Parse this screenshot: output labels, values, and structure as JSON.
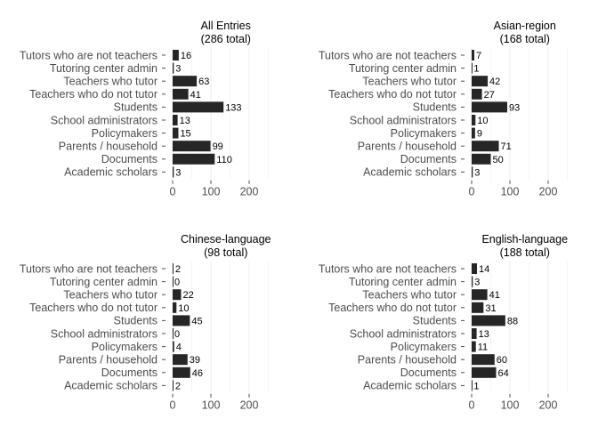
{
  "chart_data": [
    {
      "type": "bar",
      "orientation": "horizontal",
      "title": "All Entries",
      "subtitle": "(286 total)",
      "categories": [
        "Tutors who are not teachers",
        "Tutoring center admin",
        "Teachers who tutor",
        "Teachers who do not tutor",
        "Students",
        "School administrators",
        "Policymakers",
        "Parents / household",
        "Documents",
        "Academic scholars"
      ],
      "values": [
        16,
        3,
        63,
        41,
        133,
        13,
        15,
        99,
        110,
        3
      ],
      "xlim": [
        0,
        250
      ],
      "xticks": [
        0,
        100,
        200
      ],
      "grid": true,
      "bar_color": "#262626"
    },
    {
      "type": "bar",
      "orientation": "horizontal",
      "title": "Asian-region",
      "subtitle": "(168 total)",
      "categories": [
        "Tutors who are not teachers",
        "Tutoring center admin",
        "Teachers who tutor",
        "Teachers who do not tutor",
        "Students",
        "School administrators",
        "Policymakers",
        "Parents / household",
        "Documents",
        "Academic scholars"
      ],
      "values": [
        7,
        1,
        42,
        27,
        93,
        10,
        9,
        71,
        50,
        3
      ],
      "xlim": [
        0,
        250
      ],
      "xticks": [
        0,
        100,
        200
      ],
      "grid": true,
      "bar_color": "#262626"
    },
    {
      "type": "bar",
      "orientation": "horizontal",
      "title": "Chinese-language",
      "subtitle": "(98 total)",
      "categories": [
        "Tutors who are not teachers",
        "Tutoring center admin",
        "Teachers who tutor",
        "Teachers who do not tutor",
        "Students",
        "School administrators",
        "Policymakers",
        "Parents / household",
        "Documents",
        "Academic scholars"
      ],
      "values": [
        2,
        0,
        22,
        10,
        45,
        0,
        4,
        39,
        46,
        2
      ],
      "xlim": [
        0,
        250
      ],
      "xticks": [
        0,
        100,
        200
      ],
      "grid": true,
      "bar_color": "#262626"
    },
    {
      "type": "bar",
      "orientation": "horizontal",
      "title": "English-language",
      "subtitle": "(188 total)",
      "categories": [
        "Tutors who are not teachers",
        "Tutoring center admin",
        "Teachers who tutor",
        "Teachers who do not tutor",
        "Students",
        "School administrators",
        "Policymakers",
        "Parents / household",
        "Documents",
        "Academic scholars"
      ],
      "values": [
        14,
        3,
        41,
        31,
        88,
        13,
        11,
        60,
        64,
        1
      ],
      "xlim": [
        0,
        250
      ],
      "xticks": [
        0,
        100,
        200
      ],
      "grid": true,
      "bar_color": "#262626"
    }
  ]
}
